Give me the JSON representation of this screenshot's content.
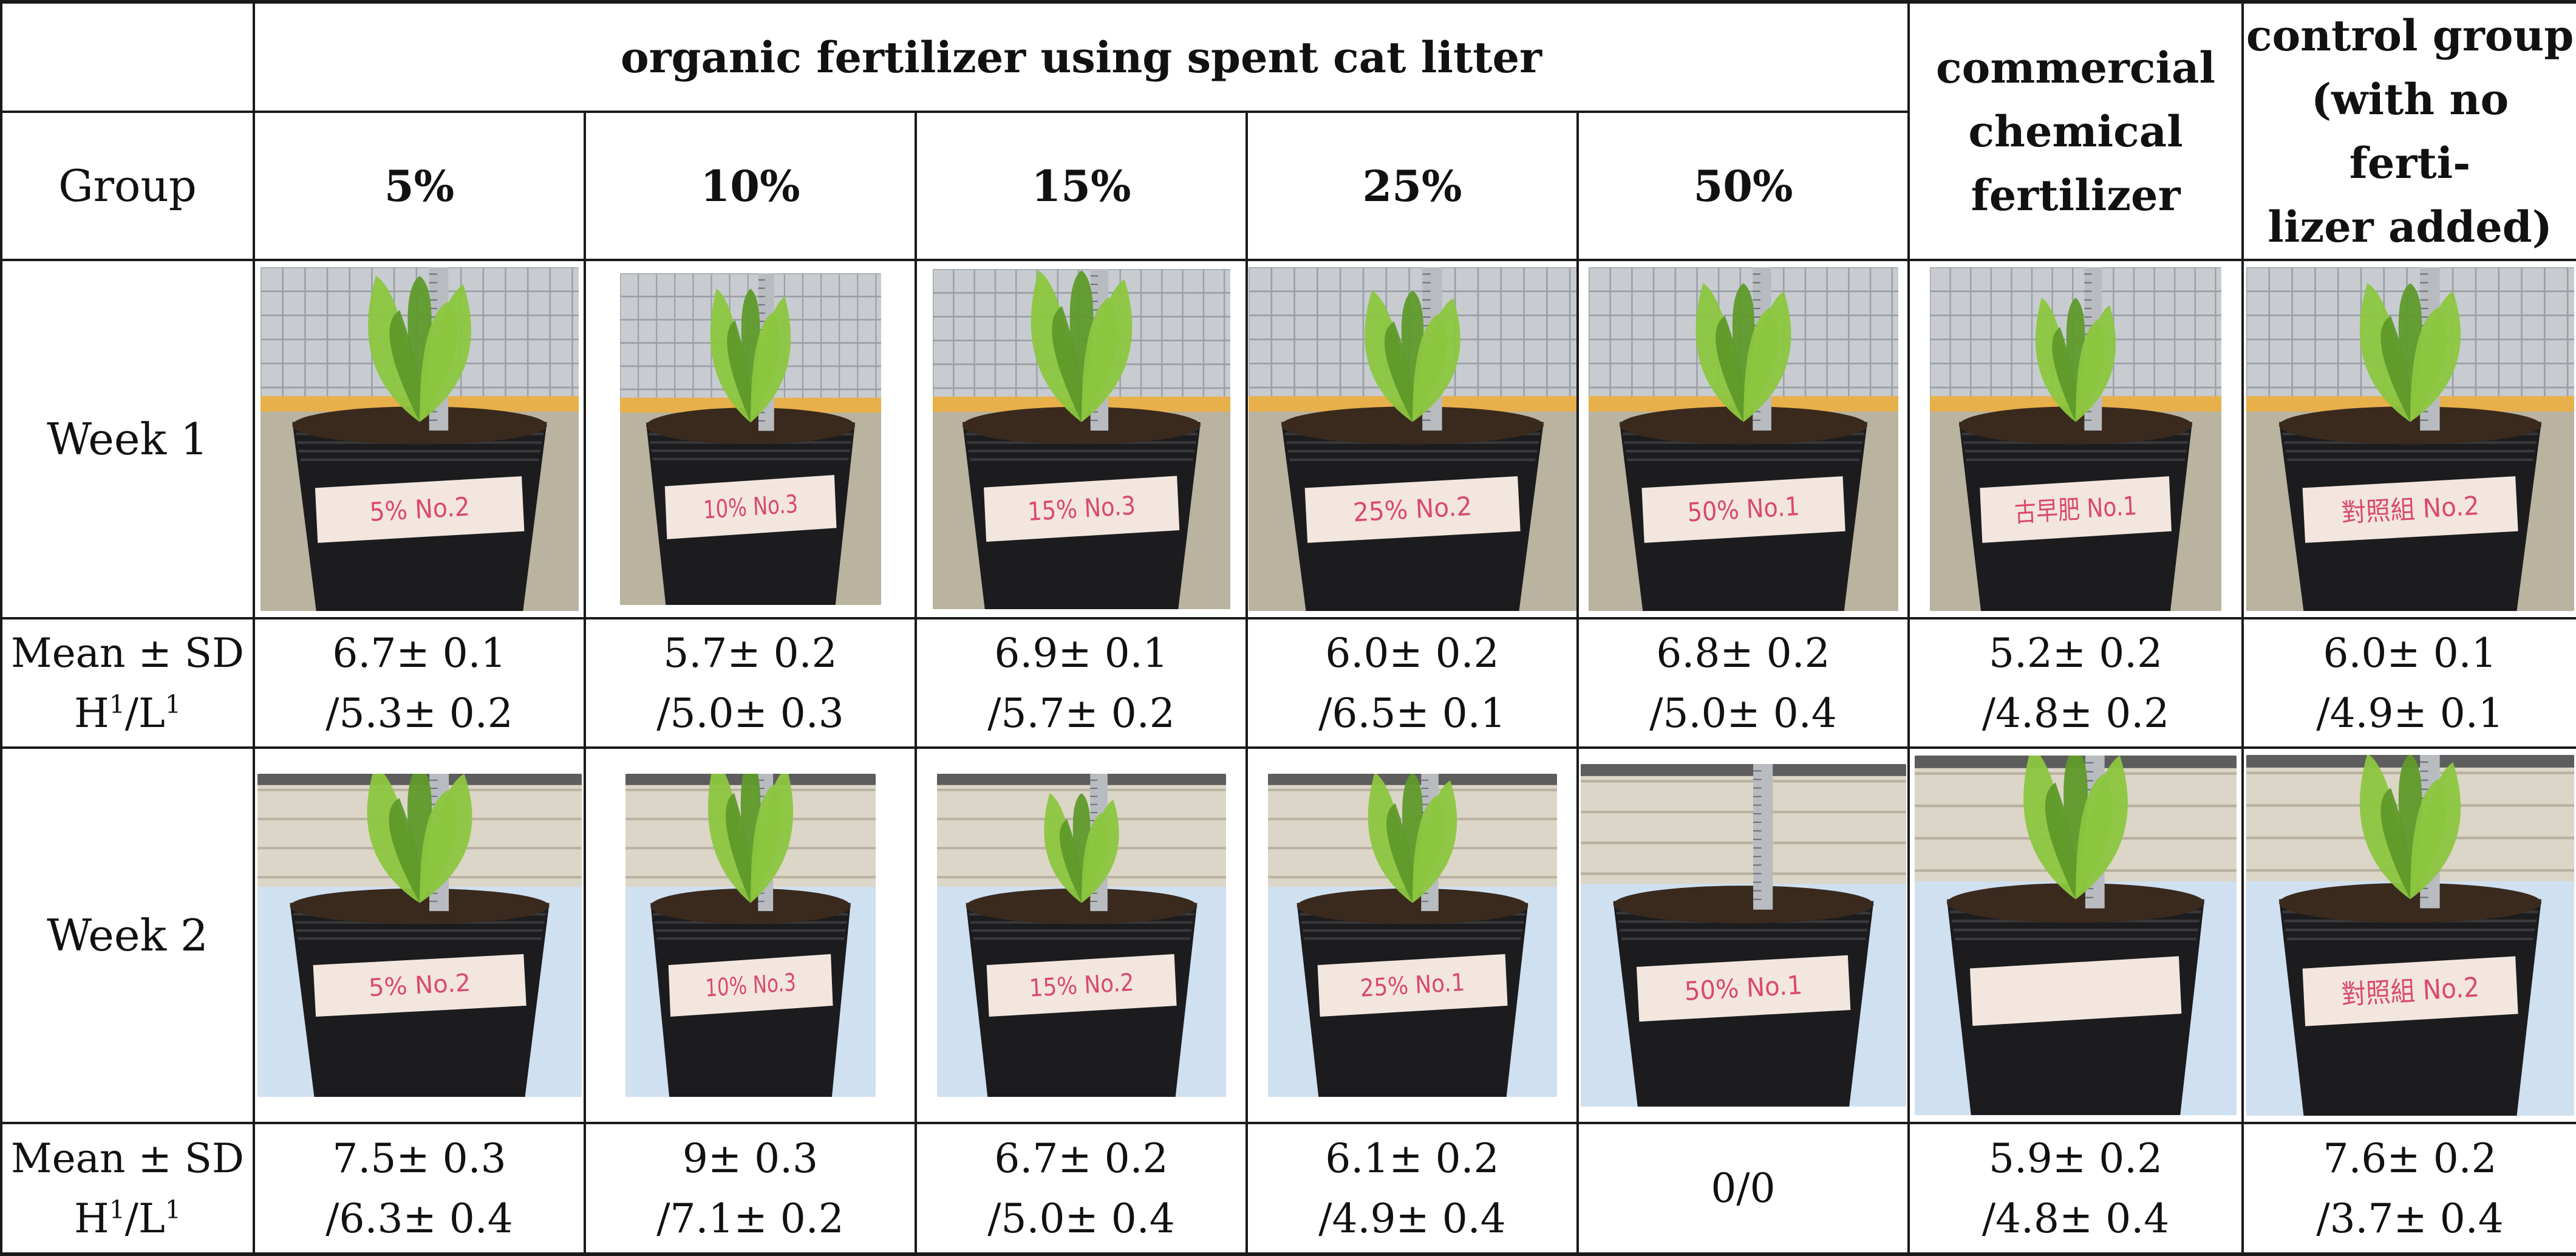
{
  "header": {
    "group_label": "Group",
    "organic_span": "organic fertilizer using spent cat litter",
    "percent_columns": [
      "5%",
      "10%",
      "15%",
      "25%",
      "50%"
    ],
    "commercial_lines": [
      "commercial",
      "chemical",
      "fertilizer"
    ],
    "control_lines": [
      "control group",
      "(with no ferti-",
      "lizer added)"
    ]
  },
  "rows": {
    "week1_label": "Week 1",
    "week2_label": "Week 2",
    "stats_label_lines": [
      "Mean ± SD",
      "H",
      "1",
      "/L",
      "1"
    ]
  },
  "week1_stats": [
    [
      "6.7± 0.1",
      "/5.3± 0.2"
    ],
    [
      "5.7± 0.2",
      "/5.0± 0.3"
    ],
    [
      "6.9± 0.1",
      "/5.7± 0.2"
    ],
    [
      "6.0± 0.2",
      "/6.5± 0.1"
    ],
    [
      "6.8± 0.2",
      "/5.0± 0.4"
    ],
    [
      "5.2± 0.2",
      "/4.8± 0.2"
    ],
    [
      "6.0± 0.1",
      "/4.9± 0.1"
    ]
  ],
  "week2_stats": [
    [
      "7.5± 0.3",
      "/6.3± 0.4"
    ],
    [
      "9± 0.3",
      "/7.1± 0.2"
    ],
    [
      "6.7± 0.2",
      "/5.0± 0.4"
    ],
    [
      "6.1± 0.2",
      "/4.9± 0.4"
    ],
    [
      "0/0",
      ""
    ],
    [
      "5.9± 0.2",
      "/4.8± 0.4"
    ],
    [
      "7.6± 0.2",
      "/3.7± 0.4"
    ]
  ],
  "photo_labels": {
    "week1": [
      "5% No.2",
      "10% No.3",
      "15% No.3",
      "25% No.2",
      "50% No.1",
      "古早肥 No.1",
      "對照組 No.2"
    ],
    "week2": [
      "5% No.2",
      "10% No.3",
      "15% No.2",
      "25% No.1",
      "50% No.1",
      "",
      "對照組 No.2"
    ]
  },
  "colors": {
    "pot": "#1c1c1e",
    "soil": "#3a2a1e",
    "leaf": "#8cc63f",
    "leaf_dark": "#5f9a2a",
    "tape": "#f2e6df",
    "tape_text": "#d94a6a",
    "ruler": "#b8bcc0",
    "backdrop_w1": "#c8ccd0",
    "backdrop_w2": "#dcd6c8",
    "floor_w1": "#e8b04a",
    "sky_w2": "#cfe0f0"
  }
}
